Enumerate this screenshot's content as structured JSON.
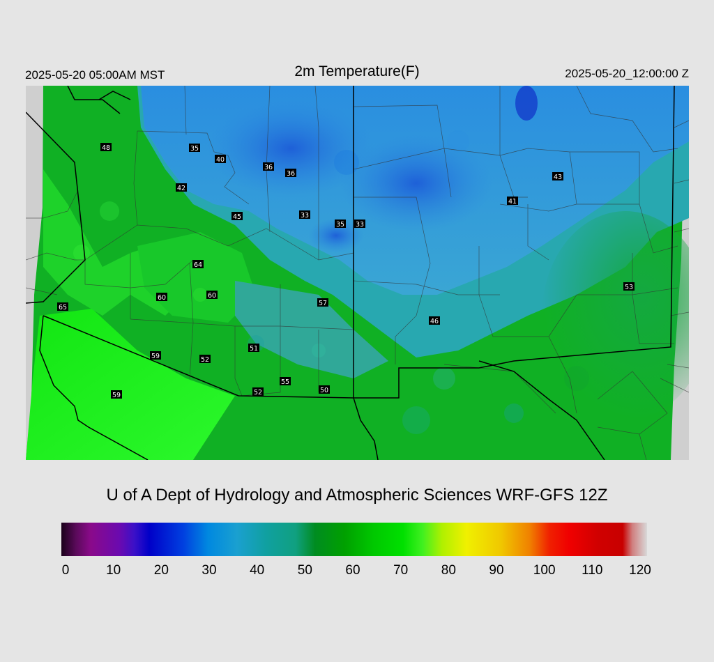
{
  "header": {
    "local_time": "2025-05-20 05:00AM MST",
    "title": "2m Temperature(F)",
    "valid_time": "2025-05-20_12:00:00 Z"
  },
  "credit": "U of A Dept of Hydrology and Atmospheric Sciences WRF-GFS 12Z",
  "colorbar": {
    "min": 0,
    "max": 120,
    "ticks": [
      "0",
      "10",
      "20",
      "30",
      "40",
      "50",
      "60",
      "70",
      "80",
      "90",
      "100",
      "110",
      "120"
    ],
    "stops": [
      {
        "v": 0,
        "color": "#1a001a"
      },
      {
        "v": 3,
        "color": "#5a0a5a"
      },
      {
        "v": 6,
        "color": "#8a0a8a"
      },
      {
        "v": 12,
        "color": "#6a0ab0"
      },
      {
        "v": 15,
        "color": "#3a10c8"
      },
      {
        "v": 18,
        "color": "#0000c8"
      },
      {
        "v": 25,
        "color": "#0040e0"
      },
      {
        "v": 30,
        "color": "#0088e0"
      },
      {
        "v": 36,
        "color": "#1aa0d0"
      },
      {
        "v": 42,
        "color": "#10a0a0"
      },
      {
        "v": 48,
        "color": "#10a080"
      },
      {
        "v": 52,
        "color": "#008c20"
      },
      {
        "v": 58,
        "color": "#00a000"
      },
      {
        "v": 64,
        "color": "#00c800"
      },
      {
        "v": 70,
        "color": "#00e000"
      },
      {
        "v": 74,
        "color": "#40f020"
      },
      {
        "v": 78,
        "color": "#b0f000"
      },
      {
        "v": 83,
        "color": "#f0f000"
      },
      {
        "v": 90,
        "color": "#f0c800"
      },
      {
        "v": 96,
        "color": "#f08000"
      },
      {
        "v": 100,
        "color": "#f02000"
      },
      {
        "v": 104,
        "color": "#f00000"
      },
      {
        "v": 110,
        "color": "#d00000"
      },
      {
        "v": 115,
        "color": "#c80000"
      },
      {
        "v": 117,
        "color": "#d08080"
      },
      {
        "v": 120,
        "color": "#d8d8d8"
      }
    ]
  },
  "stations": [
    {
      "v": "48"
    },
    {
      "v": "35"
    },
    {
      "v": "40"
    },
    {
      "v": "36"
    },
    {
      "v": "36"
    },
    {
      "v": "42"
    },
    {
      "v": "45"
    },
    {
      "v": "33"
    },
    {
      "v": "35"
    },
    {
      "v": "33"
    },
    {
      "v": "41"
    },
    {
      "v": "43"
    },
    {
      "v": "64"
    },
    {
      "v": "60"
    },
    {
      "v": "60"
    },
    {
      "v": "65"
    },
    {
      "v": "57"
    },
    {
      "v": "46"
    },
    {
      "v": "53"
    },
    {
      "v": "51"
    },
    {
      "v": "59"
    },
    {
      "v": "52"
    },
    {
      "v": "55"
    },
    {
      "v": "52"
    },
    {
      "v": "50"
    },
    {
      "v": "59"
    }
  ]
}
